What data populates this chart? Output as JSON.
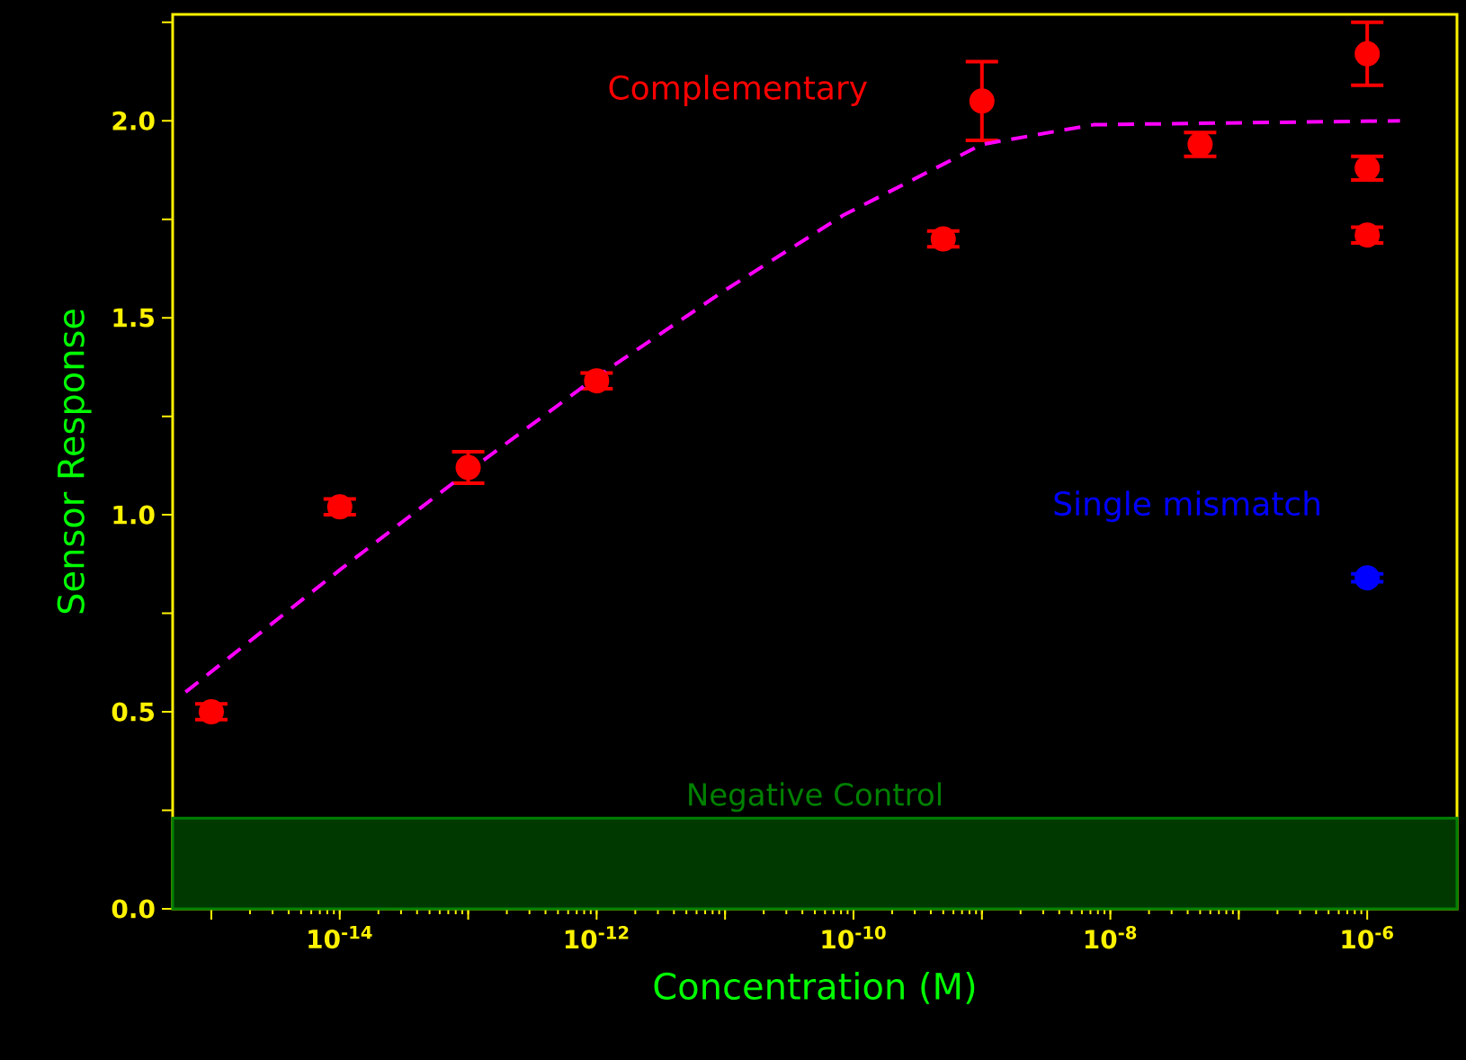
{
  "chart_data": {
    "type": "scatter",
    "xlabel": "Concentration (M)",
    "ylabel": "Sensor Response",
    "log": "x",
    "marker": "circle",
    "xlim": [
      5e-16,
      5e-06
    ],
    "ylim": [
      0,
      2.27
    ],
    "xticks": [
      {
        "value": 1e-15,
        "label": null
      },
      {
        "value": 1e-14,
        "label": "10$^{-14}$"
      },
      {
        "value": 1e-13,
        "label": null
      },
      {
        "value": 1e-12,
        "label": "10$^{-12}$"
      },
      {
        "value": 1e-11,
        "label": null
      },
      {
        "value": 1e-10,
        "label": "10$^{-10}$"
      },
      {
        "value": 1e-09,
        "label": null
      },
      {
        "value": 1e-08,
        "label": "10$^{-8}$"
      },
      {
        "value": 1e-07,
        "label": null
      },
      {
        "value": 1e-06,
        "label": "10$^{-6}$"
      }
    ],
    "yticks": [
      {
        "value": 0,
        "label": "0.0"
      },
      {
        "value": 0.25,
        "label": null
      },
      {
        "value": 0.5,
        "label": "0.5"
      },
      {
        "value": 0.75,
        "label": null
      },
      {
        "value": 1.0,
        "label": "1.0"
      },
      {
        "value": 1.25,
        "label": null
      },
      {
        "value": 1.5,
        "label": "1.5"
      },
      {
        "value": 1.75,
        "label": null
      },
      {
        "value": 2.0,
        "label": "2.0"
      },
      {
        "value": 2.25,
        "label": null
      }
    ],
    "bands": [
      {
        "axis": "y",
        "from": 0,
        "to": 0.23,
        "label": "Negative Control",
        "color": "#008000"
      }
    ],
    "series": [
      {
        "name": "Complementary",
        "color": "#ff0000",
        "x": [
          1e-15,
          1e-14,
          1e-13,
          1e-12,
          5e-10,
          1e-09,
          5e-08,
          1e-06,
          1e-06,
          1e-06
        ],
        "values": [
          0.5,
          1.02,
          1.12,
          1.34,
          1.7,
          2.05,
          1.94,
          2.17,
          1.88,
          1.71
        ],
        "errors": [
          0.02,
          0.02,
          0.04,
          0.02,
          0.02,
          0.1,
          0.03,
          0.08,
          0.03,
          0.02
        ]
      },
      {
        "name": "Single mismatch",
        "color": "#0000ff",
        "x": [
          1e-06
        ],
        "values": [
          0.84
        ],
        "errors": [
          0.01
        ]
      },
      {
        "type": "line",
        "color": "#ff00ff",
        "line_style": "dashed",
        "marker": "none",
        "x": [
          6.3e-16,
          1e-14,
          1e-13,
          1e-12,
          1e-11,
          8.3e-11,
          1e-09,
          7.4e-09,
          1.8e-06
        ],
        "values": [
          0.55,
          0.86,
          1.11,
          1.35,
          1.57,
          1.76,
          1.94,
          1.99,
          2.0
        ]
      }
    ]
  }
}
